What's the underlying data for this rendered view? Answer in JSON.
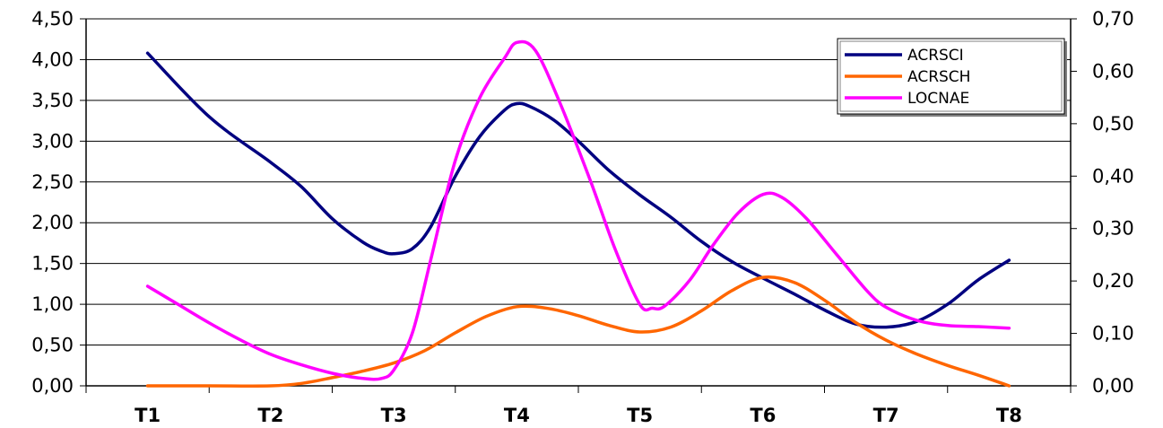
{
  "chart_data": {
    "type": "line",
    "categories": [
      "T1",
      "T2",
      "T3",
      "T4",
      "T5",
      "T6",
      "T7",
      "T8"
    ],
    "grid": true,
    "legend_position": "top-right",
    "y_left": {
      "range": [
        0,
        4.5
      ],
      "ticks": [
        "0,00",
        "0,50",
        "1,00",
        "1,50",
        "2,00",
        "2,50",
        "3,00",
        "3,50",
        "4,00",
        "4,50"
      ]
    },
    "y_right": {
      "range": [
        0,
        0.7
      ],
      "ticks": [
        "0,00",
        "0,10",
        "0,20",
        "0,30",
        "0,40",
        "0,50",
        "0,60",
        "0,70"
      ]
    },
    "series": [
      {
        "name": "ACRSCI",
        "axis": "left",
        "color": "#000080",
        "x": [
          1,
          1.5,
          2,
          2.25,
          2.5,
          2.75,
          2.9,
          3,
          3.15,
          3.3,
          3.5,
          3.7,
          3.9,
          4,
          4.1,
          4.3,
          4.5,
          4.75,
          5,
          5.25,
          5.5,
          5.75,
          6,
          6.25,
          6.5,
          6.75,
          7,
          7.25,
          7.5,
          7.75,
          8
        ],
        "y": [
          4.08,
          3.3,
          2.74,
          2.44,
          2.05,
          1.76,
          1.65,
          1.62,
          1.68,
          1.95,
          2.57,
          3.06,
          3.38,
          3.46,
          3.43,
          3.26,
          3.0,
          2.64,
          2.34,
          2.07,
          1.77,
          1.52,
          1.32,
          1.13,
          0.93,
          0.76,
          0.72,
          0.79,
          1.0,
          1.3,
          1.54
        ]
      },
      {
        "name": "ACRSCH",
        "axis": "left",
        "color": "#FF6600",
        "x": [
          1,
          1.5,
          2,
          2.25,
          2.5,
          2.75,
          3,
          3.25,
          3.5,
          3.75,
          4,
          4.25,
          4.5,
          4.75,
          5,
          5.25,
          5.5,
          5.75,
          6,
          6.25,
          6.5,
          6.75,
          7,
          7.25,
          7.5,
          7.75,
          8
        ],
        "y": [
          0.0,
          0.0,
          0.0,
          0.03,
          0.1,
          0.18,
          0.28,
          0.43,
          0.65,
          0.85,
          0.97,
          0.95,
          0.86,
          0.74,
          0.66,
          0.72,
          0.92,
          1.17,
          1.33,
          1.27,
          1.05,
          0.78,
          0.56,
          0.39,
          0.25,
          0.13,
          0.0
        ]
      },
      {
        "name": "LOCNAE",
        "axis": "right",
        "color": "#FF00FF",
        "x": [
          1,
          1.25,
          1.5,
          1.75,
          2,
          2.25,
          2.5,
          2.75,
          2.9,
          3,
          3.15,
          3.3,
          3.5,
          3.7,
          3.9,
          4,
          4.15,
          4.35,
          4.6,
          4.8,
          5,
          5.1,
          5.2,
          5.4,
          5.6,
          5.8,
          6,
          6.15,
          6.35,
          6.6,
          6.85,
          7,
          7.25,
          7.5,
          7.75,
          8
        ],
        "y": [
          0.19,
          0.155,
          0.12,
          0.088,
          0.06,
          0.04,
          0.024,
          0.014,
          0.014,
          0.03,
          0.1,
          0.24,
          0.43,
          0.55,
          0.625,
          0.655,
          0.64,
          0.54,
          0.39,
          0.26,
          0.155,
          0.148,
          0.152,
          0.2,
          0.27,
          0.33,
          0.365,
          0.36,
          0.32,
          0.25,
          0.18,
          0.15,
          0.125,
          0.115,
          0.113,
          0.11
        ]
      }
    ]
  }
}
